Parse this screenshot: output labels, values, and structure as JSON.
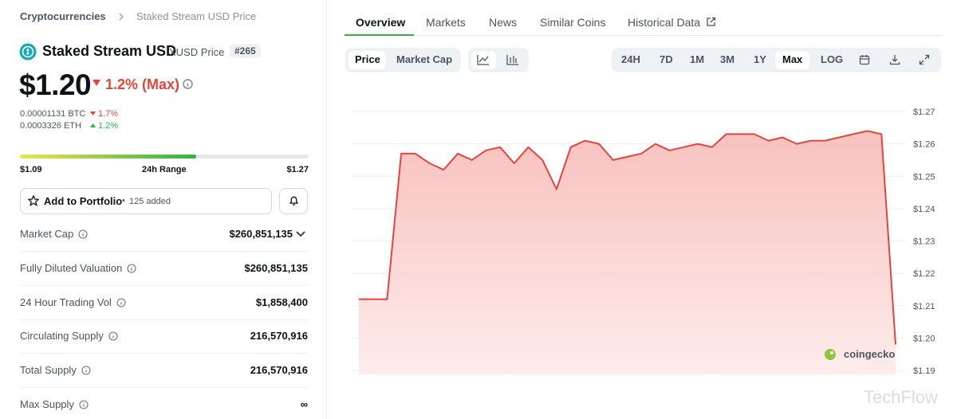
{
  "breadcrumb": [
    "Cryptocurrencies",
    "Staked Stream USD Price"
  ],
  "coin": {
    "name": "Staked Stream USD",
    "symbol_label": "XUSD Price",
    "rank": "#265"
  },
  "price": {
    "value": 1.2,
    "label": "$1.20",
    "change": "1.2% (Max)",
    "direction": "down"
  },
  "conversions": [
    {
      "amount": "0.00001131 BTC",
      "change": "1.7%",
      "direction": "down"
    },
    {
      "amount": "0.0003326 ETH",
      "change": "1.2%",
      "direction": "up"
    }
  ],
  "range": {
    "low": {
      "value": 1.09,
      "label": "$1.09"
    },
    "label": "24h Range",
    "high": {
      "value": 1.27,
      "label": "$1.27"
    }
  },
  "portfolio": {
    "button": "Add to Portfolio",
    "added": "125 added"
  },
  "stats": [
    [
      "Market Cap",
      "$260,851,135"
    ],
    [
      "Fully Diluted Valuation",
      "$260,851,135"
    ],
    [
      "24 Hour Trading Vol",
      "$1,858,400"
    ],
    [
      "Circulating Supply",
      "216,570,916"
    ],
    [
      "Total Supply",
      "216,570,916"
    ],
    [
      "Max Supply",
      "∞"
    ]
  ],
  "tabs": [
    "Overview",
    "Markets",
    "News",
    "Similar Coins",
    "Historical Data"
  ],
  "chart_controls": {
    "metrics": [
      "Price",
      "Market Cap"
    ],
    "ranges": [
      "24H",
      "7D",
      "1M",
      "3M",
      "1Y",
      "Max",
      "LOG"
    ]
  },
  "chart_data": {
    "type": "area",
    "color": "#e0463d",
    "values": [
      1.212,
      1.212,
      1.212,
      1.257,
      1.257,
      1.254,
      1.252,
      1.257,
      1.255,
      1.258,
      1.259,
      1.254,
      1.259,
      1.255,
      1.246,
      1.259,
      1.261,
      1.26,
      1.255,
      1.256,
      1.257,
      1.26,
      1.258,
      1.259,
      1.26,
      1.259,
      1.263,
      1.263,
      1.263,
      1.261,
      1.262,
      1.26,
      1.261,
      1.261,
      1.262,
      1.263,
      1.264,
      1.263,
      1.198
    ],
    "ylim": [
      1.19,
      1.27
    ],
    "yticks": [
      {
        "value": 1.19,
        "label": "$1.19"
      },
      {
        "value": 1.2,
        "label": "$1.20"
      },
      {
        "value": 1.21,
        "label": "$1.21"
      },
      {
        "value": 1.22,
        "label": "$1.22"
      },
      {
        "value": 1.23,
        "label": "$1.23"
      },
      {
        "value": 1.24,
        "label": "$1.24"
      },
      {
        "value": 1.25,
        "label": "$1.25"
      },
      {
        "value": 1.26,
        "label": "$1.26"
      },
      {
        "value": 1.27,
        "label": "$1.27"
      }
    ],
    "grid": true,
    "brand": "coingecko"
  },
  "watermark": "TechFlow"
}
